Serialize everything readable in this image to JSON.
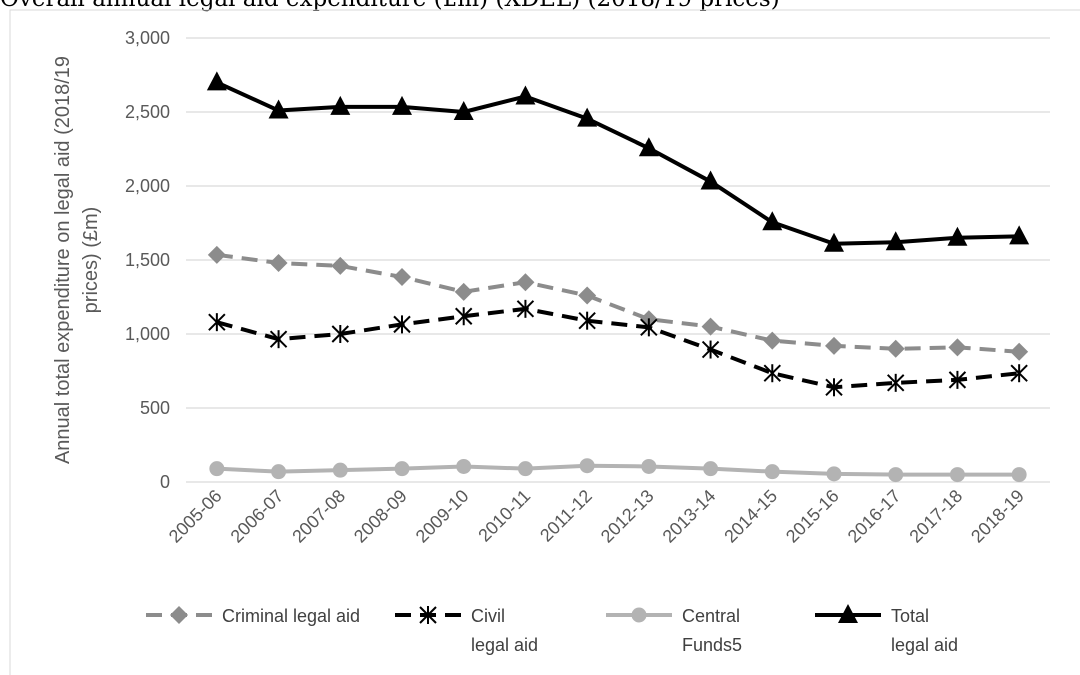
{
  "chart_data": {
    "type": "line",
    "title": "Overall annual legal aid expenditure (£m) (XDEL) (2018/19 prices)",
    "ylabel_lines": [
      "Annual total expenditure on legal aid (2018/19",
      "prices) (£m)"
    ],
    "xlabel": "",
    "ylim": [
      0,
      3000
    ],
    "yticks": [
      0,
      500,
      1000,
      1500,
      2000,
      2500,
      3000
    ],
    "ytick_labels": [
      "0",
      "500",
      "1,000",
      "1,500",
      "2,000",
      "2,500",
      "3,000"
    ],
    "grid": "horizontal",
    "legend_position": "bottom",
    "categories": [
      "2005-06",
      "2006-07",
      "2007-08",
      "2008-09",
      "2009-10",
      "2010-11",
      "2011-12",
      "2012-13",
      "2013-14",
      "2014-15",
      "2015-16",
      "2016-17",
      "2017-18",
      "2018-19"
    ],
    "series": [
      {
        "name": "Criminal legal aid",
        "legend_lines": [
          "Criminal legal aid"
        ],
        "color": "#8c8c8c",
        "line_style": "dashed",
        "marker": "diamond",
        "values": [
          1535,
          1480,
          1460,
          1385,
          1285,
          1350,
          1260,
          1100,
          1050,
          955,
          920,
          900,
          910,
          880
        ]
      },
      {
        "name": "Civil legal aid",
        "legend_lines": [
          "Civil",
          "legal aid"
        ],
        "color": "#000000",
        "line_style": "dashed",
        "marker": "asterisk",
        "values": [
          1080,
          965,
          1000,
          1065,
          1120,
          1170,
          1090,
          1045,
          895,
          735,
          640,
          670,
          690,
          735
        ]
      },
      {
        "name": "Central Funds5",
        "legend_lines": [
          "Central",
          "Funds5"
        ],
        "color": "#b3b3b3",
        "line_style": "solid",
        "marker": "circle",
        "values": [
          90,
          70,
          80,
          90,
          105,
          90,
          110,
          105,
          90,
          70,
          55,
          50,
          50,
          50
        ]
      },
      {
        "name": "Total legal aid",
        "legend_lines": [
          "Total",
          "legal aid"
        ],
        "color": "#000000",
        "line_style": "solid",
        "marker": "triangle",
        "values": [
          2700,
          2510,
          2535,
          2535,
          2500,
          2605,
          2455,
          2255,
          2030,
          1755,
          1610,
          1620,
          1650,
          1660
        ]
      }
    ]
  }
}
